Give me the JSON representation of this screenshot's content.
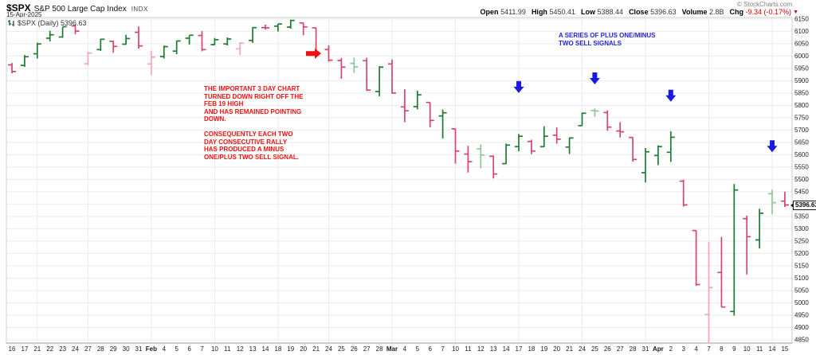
{
  "header": {
    "symbol": "$SPX",
    "index_name": "S&P 500 Large Cap Index",
    "exchange": "INDX",
    "date": "15-Apr-2025",
    "copyright": "© StockCharts.com",
    "quote": [
      {
        "label": "Open",
        "value": "5411.99"
      },
      {
        "label": "High",
        "value": "5450.41"
      },
      {
        "label": "Low",
        "value": "5388.44"
      },
      {
        "label": "Close",
        "value": "5396.63"
      },
      {
        "label": "Volume",
        "value": "2.8B"
      },
      {
        "label": "Chg",
        "value": "-9.34 (-0.17%)"
      }
    ],
    "chg_direction_icon": "▼"
  },
  "chart_label": "$SPX (Daily) 5396.63",
  "price_label": "5396.63",
  "annotations": {
    "red_note": "THE IMPORTANT 3 DAY CHART\nTURNED DOWN RIGHT OFF THE\nFEB 19 HIGH\nAND HAS REMAINED POINTING\nDOWN.\n\nCONSEQUENTLY EACH TWO\nDAY CONSECUTIVE RALLY\nHAS PRODUCED A MINUS\nONE/PLUS TWO SELL SIGNAL.",
    "blue_note": "A SERIES OF PLUS ONE/MINUS\nTWO SELL SIGNALS"
  },
  "colors": {
    "bar_up": "#1e7b33",
    "bar_up_light": "#8fc49c",
    "bar_down": "#d4476b",
    "bar_down_light": "#f2a6ba",
    "grid": "#ebebeb",
    "plot_border": "#cccccc",
    "axis_bottom": "#999999",
    "axis_text": "#1a1a1a",
    "annotation_red": "#ee1111",
    "annotation_blue": "#2222dd",
    "arrow_red": "#ee1111",
    "arrow_blue": "#1a1ae0",
    "chg_negative": "#cc0000"
  },
  "chart_data": {
    "type": "ohlc-bar",
    "title": "$SPX (Daily)",
    "xlabel": "",
    "ylabel": "",
    "grid": true,
    "ylim": [
      4837,
      6156
    ],
    "y_tick_min": 4850,
    "y_tick_max": 6150,
    "y_tick_step": 50,
    "x_labels": [
      "16",
      "17",
      "21",
      "22",
      "23",
      "24",
      "27",
      "28",
      "29",
      "30",
      "31",
      "Feb",
      "4",
      "5",
      "6",
      "7",
      "10",
      "11",
      "12",
      "13",
      "14",
      "18",
      "19",
      "20",
      "21",
      "24",
      "25",
      "26",
      "27",
      "28",
      "Mar",
      "4",
      "5",
      "6",
      "7",
      "10",
      "11",
      "12",
      "13",
      "14",
      "17",
      "18",
      "19",
      "20",
      "21",
      "24",
      "25",
      "26",
      "27",
      "28",
      "31",
      "Apr",
      "2",
      "3",
      "4",
      "7",
      "8",
      "9",
      "10",
      "11",
      "14",
      "15"
    ],
    "week_start_indices": [
      2,
      6,
      11,
      16,
      21,
      25,
      30,
      35,
      40,
      45,
      50,
      55,
      60
    ],
    "bars": [
      [
        5964,
        5972,
        5930,
        5937
      ],
      [
        5962,
        6004,
        5956,
        5997
      ],
      [
        6009,
        6054,
        5990,
        6049
      ],
      [
        6072,
        6102,
        6059,
        6086
      ],
      [
        6077,
        6118,
        6074,
        6119
      ],
      [
        6122,
        6128,
        6088,
        6101
      ],
      [
        5969,
        6018,
        5962,
        6012
      ],
      [
        6026,
        6070,
        6021,
        6068
      ],
      [
        6060,
        6062,
        6013,
        6039
      ],
      [
        6048,
        6086,
        6046,
        6071
      ],
      [
        6096,
        6120,
        6030,
        6041
      ],
      [
        5968,
        6022,
        5923,
        5995
      ],
      [
        5998,
        6042,
        5990,
        6038
      ],
      [
        6020,
        6062,
        6007,
        6061
      ],
      [
        6072,
        6084,
        6046,
        6084
      ],
      [
        6083,
        6101,
        6019,
        6026
      ],
      [
        6046,
        6073,
        6044,
        6066
      ],
      [
        6049,
        6075,
        6043,
        6069
      ],
      [
        6029,
        6056,
        6003,
        6052
      ],
      [
        6063,
        6117,
        6053,
        6115
      ],
      [
        6115,
        6127,
        6107,
        6114
      ],
      [
        6121,
        6130,
        6099,
        6130
      ],
      [
        6117,
        6147,
        6111,
        6144
      ],
      [
        6134,
        6135,
        6084,
        6118
      ],
      [
        6114,
        6115,
        6008,
        6013
      ],
      [
        6026,
        6043,
        5977,
        5983
      ],
      [
        5982,
        5992,
        5908,
        5955
      ],
      [
        5970,
        5993,
        5932,
        5956
      ],
      [
        5981,
        5993,
        5858,
        5862
      ],
      [
        5856,
        5959,
        5837,
        5955
      ],
      [
        5968,
        5986,
        5847,
        5850
      ],
      [
        5794,
        5865,
        5732,
        5778
      ],
      [
        5795,
        5860,
        5784,
        5843
      ],
      [
        5812,
        5812,
        5711,
        5739
      ],
      [
        5757,
        5783,
        5666,
        5770
      ],
      [
        5705,
        5705,
        5564,
        5615
      ],
      [
        5603,
        5636,
        5528,
        5572
      ],
      [
        5624,
        5642,
        5546,
        5599
      ],
      [
        5594,
        5597,
        5504,
        5522
      ],
      [
        5564,
        5645,
        5563,
        5639
      ],
      [
        5633,
        5684,
        5614,
        5675
      ],
      [
        5654,
        5661,
        5602,
        5615
      ],
      [
        5633,
        5715,
        5632,
        5675
      ],
      [
        5679,
        5711,
        5645,
        5663
      ],
      [
        5631,
        5670,
        5603,
        5668
      ],
      [
        5718,
        5771,
        5718,
        5768
      ],
      [
        5779,
        5787,
        5754,
        5777
      ],
      [
        5771,
        5780,
        5697,
        5712
      ],
      [
        5696,
        5732,
        5670,
        5693
      ],
      [
        5670,
        5671,
        5572,
        5581
      ],
      [
        5527,
        5627,
        5488,
        5612
      ],
      [
        5597,
        5638,
        5558,
        5633
      ],
      [
        5610,
        5695,
        5571,
        5671
      ],
      [
        5493,
        5499,
        5390,
        5397
      ],
      [
        5293,
        5293,
        5069,
        5074
      ],
      [
        4953,
        5246,
        4835,
        5062
      ],
      [
        5123,
        5267,
        4982,
        4983
      ],
      [
        4965,
        5481,
        4948,
        5457
      ],
      [
        5341,
        5353,
        5115,
        5268
      ],
      [
        5255,
        5381,
        5220,
        5363
      ],
      [
        5442,
        5459,
        5358,
        5406
      ],
      [
        5411.99,
        5450.41,
        5388.44,
        5396.63
      ]
    ],
    "arrows": [
      {
        "dir": "right",
        "bar": 23.9,
        "price": 6010,
        "color": "red",
        "meaning": "3-day chart turned down off Feb 19 high"
      },
      {
        "dir": "down",
        "bar": 40,
        "price": 5850,
        "color": "blue",
        "meaning": "sell signal"
      },
      {
        "dir": "down",
        "bar": 46,
        "price": 5885,
        "color": "blue",
        "meaning": "sell signal"
      },
      {
        "dir": "down",
        "bar": 52,
        "price": 5815,
        "color": "blue",
        "meaning": "sell signal"
      },
      {
        "dir": "down",
        "bar": 60,
        "price": 5610,
        "color": "blue",
        "meaning": "sell signal"
      }
    ]
  }
}
